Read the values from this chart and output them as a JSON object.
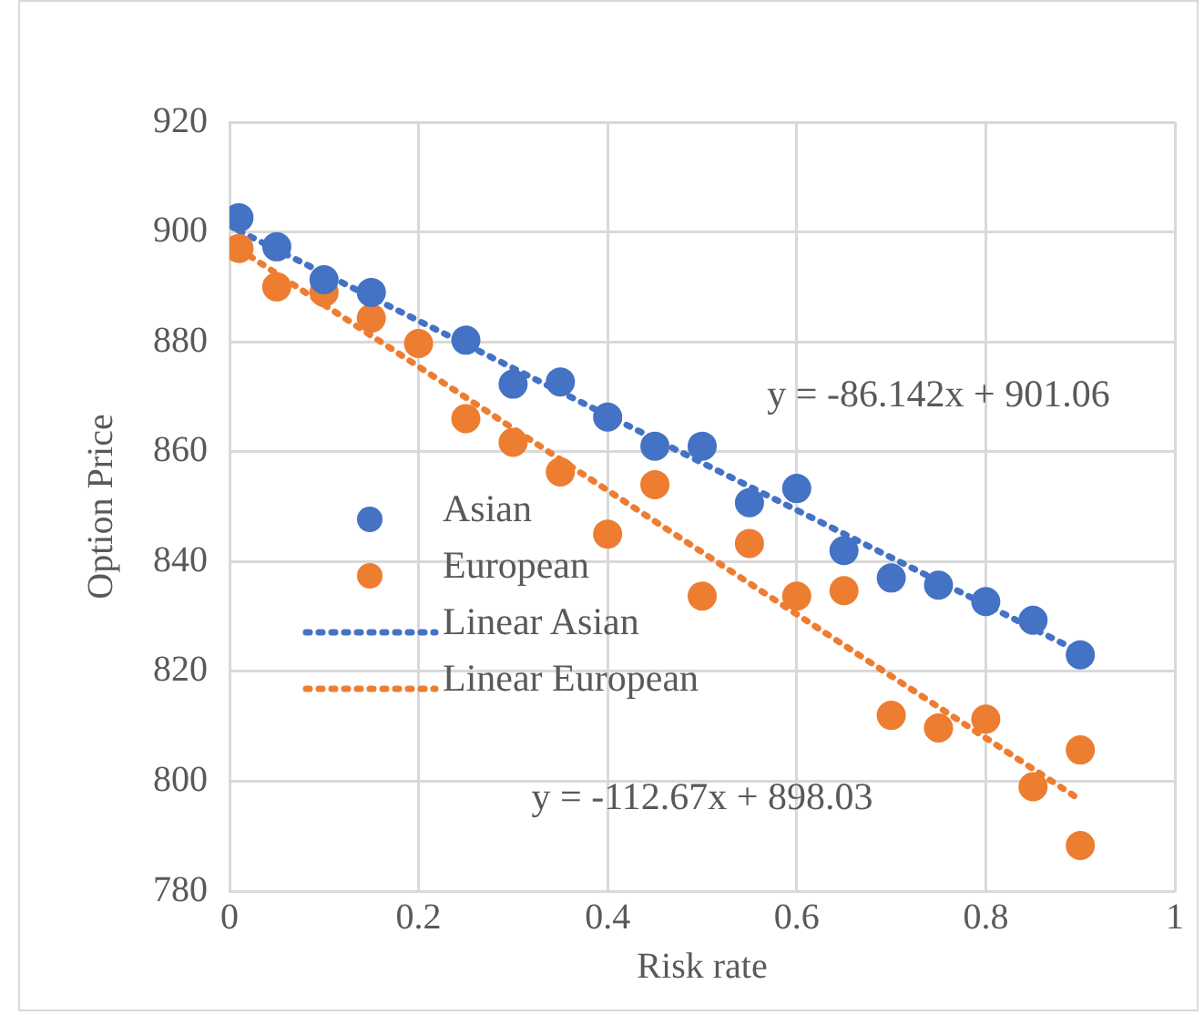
{
  "chart_data": {
    "type": "scatter",
    "xlabel": "Risk rate",
    "ylabel": "Option Price",
    "xlim": [
      0,
      1
    ],
    "xticks": [
      0,
      0.2,
      0.4,
      0.6,
      0.8,
      1
    ],
    "ylim": [
      780,
      920
    ],
    "yticks": [
      780,
      800,
      820,
      840,
      860,
      880,
      900,
      920
    ],
    "grid": true,
    "legend": "left",
    "series": [
      {
        "name": "Asian",
        "marker": "circle",
        "color": "#4472c4",
        "x": [
          0.01,
          0.05,
          0.1,
          0.15,
          0.25,
          0.3,
          0.35,
          0.4,
          0.45,
          0.5,
          0.55,
          0.6,
          0.65,
          0.7,
          0.75,
          0.8,
          0.85,
          0.9
        ],
        "values": [
          902.6,
          897.3,
          891.3,
          889,
          880.3,
          872.3,
          872.7,
          866.3,
          861,
          861,
          850.7,
          853.3,
          842,
          837,
          835.7,
          832.7,
          829.3,
          823
        ]
      },
      {
        "name": "European",
        "marker": "circle",
        "color": "#ed7d31",
        "x": [
          0.01,
          0.05,
          0.1,
          0.15,
          0.2,
          0.25,
          0.3,
          0.35,
          0.4,
          0.45,
          0.5,
          0.55,
          0.6,
          0.65,
          0.7,
          0.75,
          0.8,
          0.85,
          0.9,
          0.9
        ],
        "values": [
          897,
          890,
          889,
          884.3,
          879.7,
          866,
          861.7,
          856.3,
          845,
          854,
          833.7,
          843.3,
          833.7,
          834.7,
          812,
          809.7,
          811.3,
          799,
          805.7,
          788.3
        ]
      },
      {
        "name": "Linear Asian",
        "type": "line",
        "marker": "none",
        "line_style": "dotted",
        "color": "#4472c4",
        "x": [
          0.01,
          0.9
        ],
        "values": [
          900.2,
          823.5
        ]
      },
      {
        "name": "Linear European",
        "type": "line",
        "marker": "none",
        "line_style": "dotted",
        "color": "#ed7d31",
        "x": [
          0.01,
          0.9
        ],
        "values": [
          896.9,
          796.6
        ]
      }
    ],
    "annotations": [
      "y = -86.142x + 901.06",
      "y = -112.67x + 898.03"
    ]
  }
}
